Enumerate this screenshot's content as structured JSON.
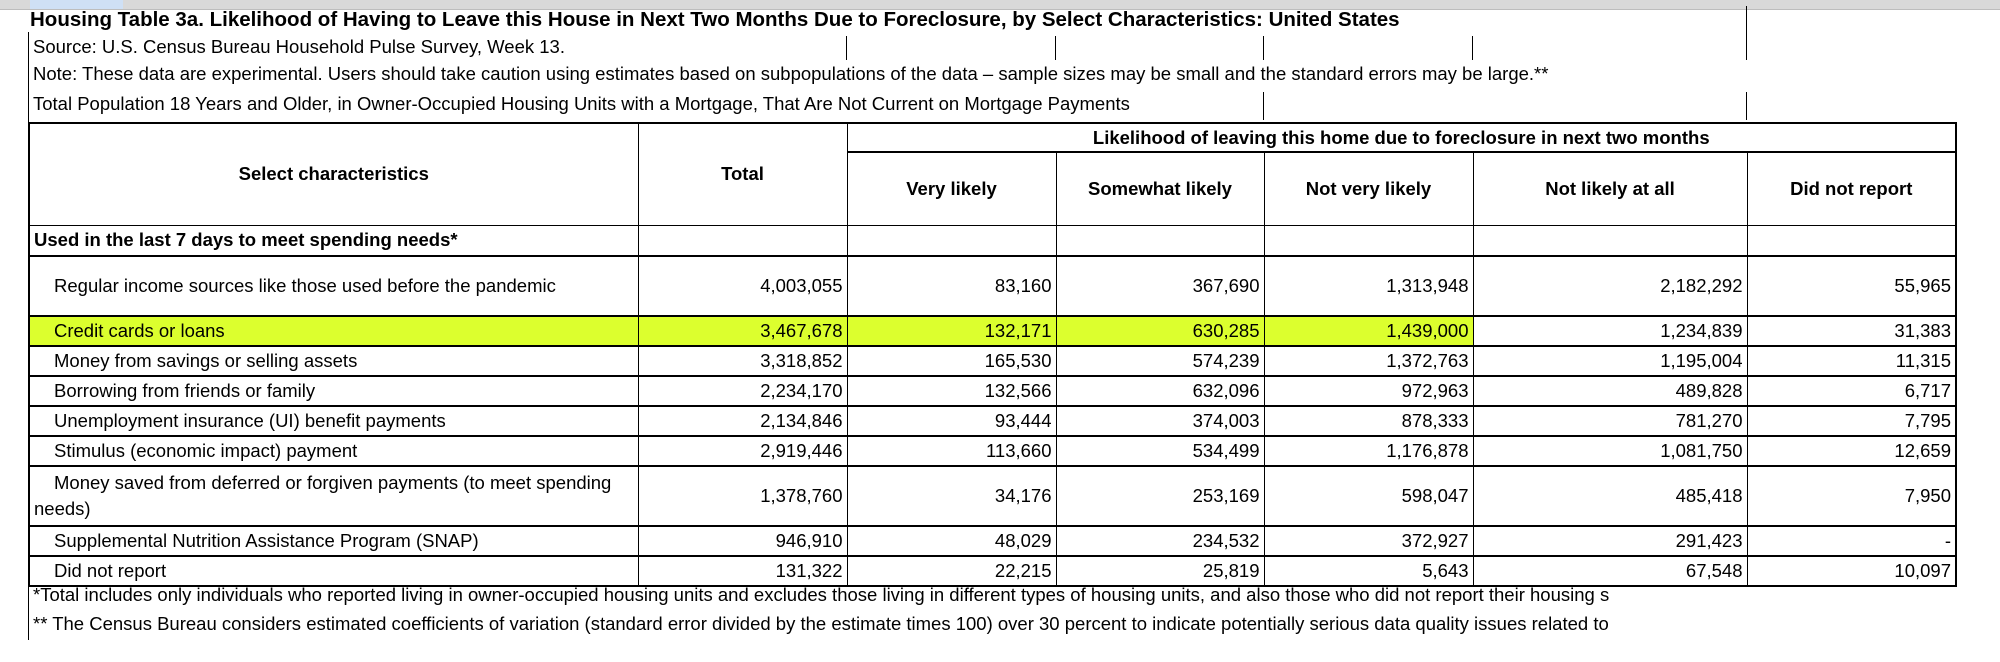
{
  "title": "Housing Table 3a. Likelihood of Having to Leave this House in Next Two Months Due to Foreclosure, by Select Characteristics: United States",
  "source": "Source: U.S. Census Bureau Household Pulse Survey, Week 13.",
  "note": "Note: These data are experimental. Users should take caution using estimates based on subpopulations of the data – sample sizes may be small and the standard errors may be large.**",
  "universe": "Total Population 18 Years and Older, in Owner-Occupied Housing Units with a Mortgage, That Are Not Current on Mortgage Payments",
  "header": {
    "characteristics": "Select characteristics",
    "total": "Total",
    "group": "Likelihood of leaving this home due to foreclosure in next two months",
    "columns": [
      "Very likely",
      "Somewhat likely",
      "Not very likely",
      "Not likely at all",
      "Did not report"
    ]
  },
  "highlight_color": "#dcff2e",
  "section": "Used in the last 7 days to meet spending needs*",
  "rows": [
    {
      "label": "Regular income sources like those used before the pandemic",
      "values": [
        "4,003,055",
        "83,160",
        "367,690",
        "1,313,948",
        "2,182,292",
        "55,965"
      ]
    },
    {
      "label": "Credit cards or loans",
      "highlighted": true,
      "values": [
        "3,467,678",
        "132,171",
        "630,285",
        "1,439,000",
        "1,234,839",
        "31,383"
      ]
    },
    {
      "label": "Money from savings or selling assets",
      "values": [
        "3,318,852",
        "165,530",
        "574,239",
        "1,372,763",
        "1,195,004",
        "11,315"
      ]
    },
    {
      "label": "Borrowing from friends or family",
      "values": [
        "2,234,170",
        "132,566",
        "632,096",
        "972,963",
        "489,828",
        "6,717"
      ]
    },
    {
      "label": "Unemployment insurance (UI) benefit payments",
      "values": [
        "2,134,846",
        "93,444",
        "374,003",
        "878,333",
        "781,270",
        "7,795"
      ]
    },
    {
      "label": "Stimulus (economic impact) payment",
      "values": [
        "2,919,446",
        "113,660",
        "534,499",
        "1,176,878",
        "1,081,750",
        "12,659"
      ]
    },
    {
      "label": "Money saved from deferred or forgiven payments (to meet spending needs)",
      "values": [
        "1,378,760",
        "34,176",
        "253,169",
        "598,047",
        "485,418",
        "7,950"
      ]
    },
    {
      "label": "Supplemental Nutrition Assistance Program (SNAP)",
      "values": [
        "946,910",
        "48,029",
        "234,532",
        "372,927",
        "291,423",
        "-"
      ]
    },
    {
      "label": "Did not report",
      "values": [
        "131,322",
        "22,215",
        "25,819",
        "5,643",
        "67,548",
        "10,097"
      ]
    }
  ],
  "footnotes": [
    "*Total includes only individuals who reported living in owner-occupied housing units and excludes those living in different types of housing units, and also those who did not report their housing s",
    "** The Census Bureau considers estimated coefficients of variation (standard error divided by the estimate times 100) over 30 percent to indicate potentially serious data quality issues related to"
  ]
}
